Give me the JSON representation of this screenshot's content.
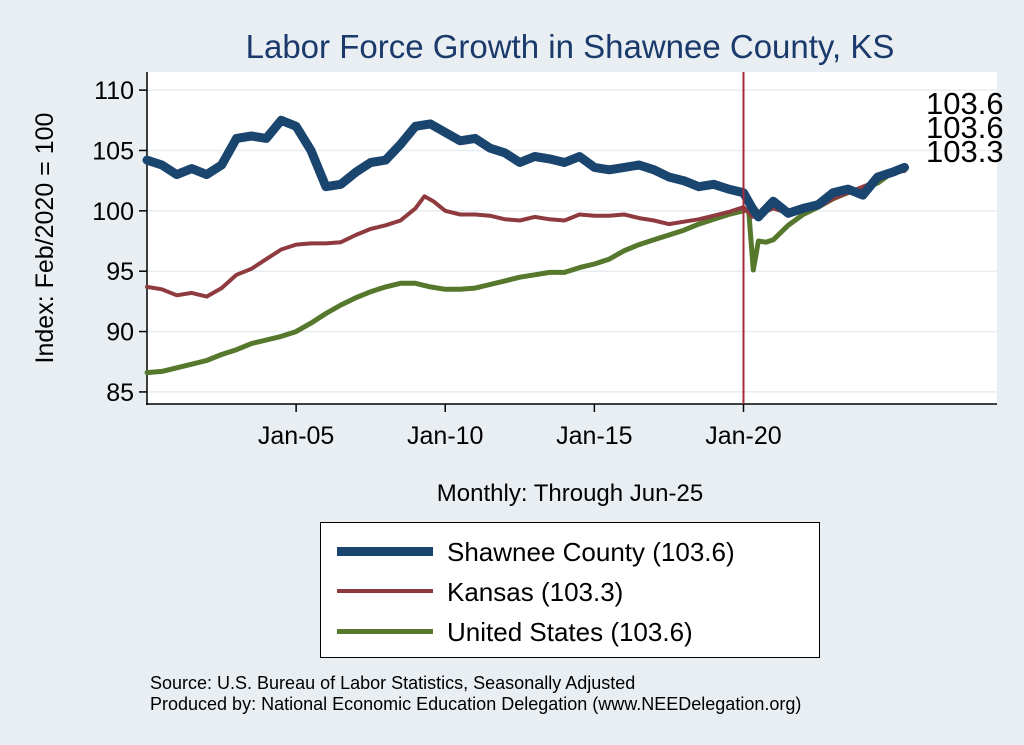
{
  "title": "Labor Force Growth in Shawnee  County, KS",
  "source_line1": "Source: U.S. Bureau of Labor Statistics, Seasonally Adjusted",
  "source_line2": "Produced by: National Economic Education Delegation (www.NEEDelegation.org)",
  "colors": {
    "background": "#e9eef3",
    "plot_bg": "#ffffff",
    "shawnee": "#1a456f",
    "kansas": "#8f3a3f",
    "us": "#55782d",
    "vline": "#a52a3a",
    "title": "#1a3a6b"
  },
  "chart_data": {
    "type": "line",
    "title": "Labor Force Growth in Shawnee  County, KS",
    "xlabel": "Monthly: Through Jun-25",
    "ylabel": "Index: Feb/2020 = 100",
    "xlim": [
      2000.0,
      2028.5
    ],
    "ylim": [
      84.0,
      111.5
    ],
    "yticks": [
      85,
      90,
      95,
      100,
      105,
      110
    ],
    "xticks": [
      {
        "x": 2005.0,
        "label": "Jan-05"
      },
      {
        "x": 2010.0,
        "label": "Jan-10"
      },
      {
        "x": 2015.0,
        "label": "Jan-15"
      },
      {
        "x": 2020.0,
        "label": "Jan-20"
      }
    ],
    "vline_x": 2020.0,
    "grid": true,
    "series": [
      {
        "name": "Shawnee  County",
        "legend_label": "Shawnee  County (103.6)",
        "end_label": "103.6",
        "color": "#1a456f",
        "line_width": 9,
        "x": [
          2000.0,
          2000.5,
          2001.0,
          2001.5,
          2002.0,
          2002.5,
          2003.0,
          2003.5,
          2004.0,
          2004.5,
          2005.0,
          2005.5,
          2006.0,
          2006.5,
          2007.0,
          2007.5,
          2008.0,
          2008.5,
          2009.0,
          2009.5,
          2010.0,
          2010.5,
          2011.0,
          2011.5,
          2012.0,
          2012.5,
          2013.0,
          2013.5,
          2014.0,
          2014.5,
          2015.0,
          2015.5,
          2016.0,
          2016.5,
          2017.0,
          2017.5,
          2018.0,
          2018.5,
          2019.0,
          2019.5,
          2020.0,
          2020.3,
          2020.5,
          2021.0,
          2021.5,
          2022.0,
          2022.5,
          2023.0,
          2023.5,
          2024.0,
          2024.5,
          2025.0,
          2025.4
        ],
        "y": [
          104.2,
          103.8,
          103.0,
          103.5,
          103.0,
          103.8,
          106.0,
          106.2,
          106.0,
          107.5,
          107.0,
          105.0,
          102.0,
          102.2,
          103.2,
          104.0,
          104.2,
          105.5,
          107.0,
          107.2,
          106.5,
          105.8,
          106.0,
          105.2,
          104.8,
          104.0,
          104.5,
          104.3,
          104.0,
          104.5,
          103.6,
          103.4,
          103.6,
          103.8,
          103.4,
          102.8,
          102.5,
          102.0,
          102.2,
          101.8,
          101.5,
          100.2,
          99.5,
          100.8,
          99.8,
          100.2,
          100.5,
          101.5,
          101.8,
          101.3,
          102.8,
          103.2,
          103.6
        ]
      },
      {
        "name": "Kansas",
        "legend_label": "Kansas (103.3)",
        "end_label": "103.3",
        "color": "#8f3a3f",
        "line_width": 4,
        "x": [
          2000.0,
          2000.5,
          2001.0,
          2001.5,
          2002.0,
          2002.5,
          2003.0,
          2003.5,
          2004.0,
          2004.5,
          2005.0,
          2005.5,
          2006.0,
          2006.5,
          2007.0,
          2007.5,
          2008.0,
          2008.5,
          2009.0,
          2009.3,
          2009.6,
          2010.0,
          2010.5,
          2011.0,
          2011.5,
          2012.0,
          2012.5,
          2013.0,
          2013.5,
          2014.0,
          2014.5,
          2015.0,
          2015.5,
          2016.0,
          2016.5,
          2017.0,
          2017.5,
          2018.0,
          2018.5,
          2019.0,
          2019.5,
          2020.0,
          2020.3,
          2020.6,
          2021.0,
          2021.5,
          2022.0,
          2022.5,
          2023.0,
          2023.5,
          2024.0,
          2024.5,
          2025.0,
          2025.4
        ],
        "y": [
          93.7,
          93.5,
          93.0,
          93.2,
          92.9,
          93.6,
          94.7,
          95.2,
          96.0,
          96.8,
          97.2,
          97.3,
          97.3,
          97.4,
          98.0,
          98.5,
          98.8,
          99.2,
          100.2,
          101.2,
          100.8,
          100.0,
          99.7,
          99.7,
          99.6,
          99.3,
          99.2,
          99.5,
          99.3,
          99.2,
          99.7,
          99.6,
          99.6,
          99.7,
          99.4,
          99.2,
          98.9,
          99.1,
          99.3,
          99.6,
          99.9,
          100.3,
          99.5,
          99.8,
          100.2,
          99.8,
          100.0,
          100.3,
          101.0,
          101.5,
          102.0,
          102.5,
          103.2,
          103.3
        ]
      },
      {
        "name": "United States",
        "legend_label": "United States (103.6)",
        "end_label": "103.6",
        "color": "#55782d",
        "line_width": 5,
        "x": [
          2000.0,
          2000.5,
          2001.0,
          2001.5,
          2002.0,
          2002.5,
          2003.0,
          2003.5,
          2004.0,
          2004.5,
          2005.0,
          2005.5,
          2006.0,
          2006.5,
          2007.0,
          2007.5,
          2008.0,
          2008.5,
          2009.0,
          2009.5,
          2010.0,
          2010.5,
          2011.0,
          2011.5,
          2012.0,
          2012.5,
          2013.0,
          2013.5,
          2014.0,
          2014.5,
          2015.0,
          2015.5,
          2016.0,
          2016.5,
          2017.0,
          2017.5,
          2018.0,
          2018.5,
          2019.0,
          2019.5,
          2020.0,
          2020.17,
          2020.33,
          2020.5,
          2020.75,
          2021.0,
          2021.5,
          2022.0,
          2022.5,
          2023.0,
          2023.5,
          2024.0,
          2024.5,
          2025.0,
          2025.4
        ],
        "y": [
          86.6,
          86.7,
          87.0,
          87.3,
          87.6,
          88.1,
          88.5,
          89.0,
          89.3,
          89.6,
          90.0,
          90.7,
          91.5,
          92.2,
          92.8,
          93.3,
          93.7,
          94.0,
          94.0,
          93.7,
          93.5,
          93.5,
          93.6,
          93.9,
          94.2,
          94.5,
          94.7,
          94.9,
          94.9,
          95.3,
          95.6,
          96.0,
          96.7,
          97.2,
          97.6,
          98.0,
          98.4,
          98.9,
          99.3,
          99.7,
          100.0,
          100.1,
          95.1,
          97.5,
          97.4,
          97.6,
          98.8,
          99.7,
          100.3,
          101.0,
          101.5,
          101.8,
          102.3,
          103.2,
          103.6
        ]
      }
    ]
  }
}
